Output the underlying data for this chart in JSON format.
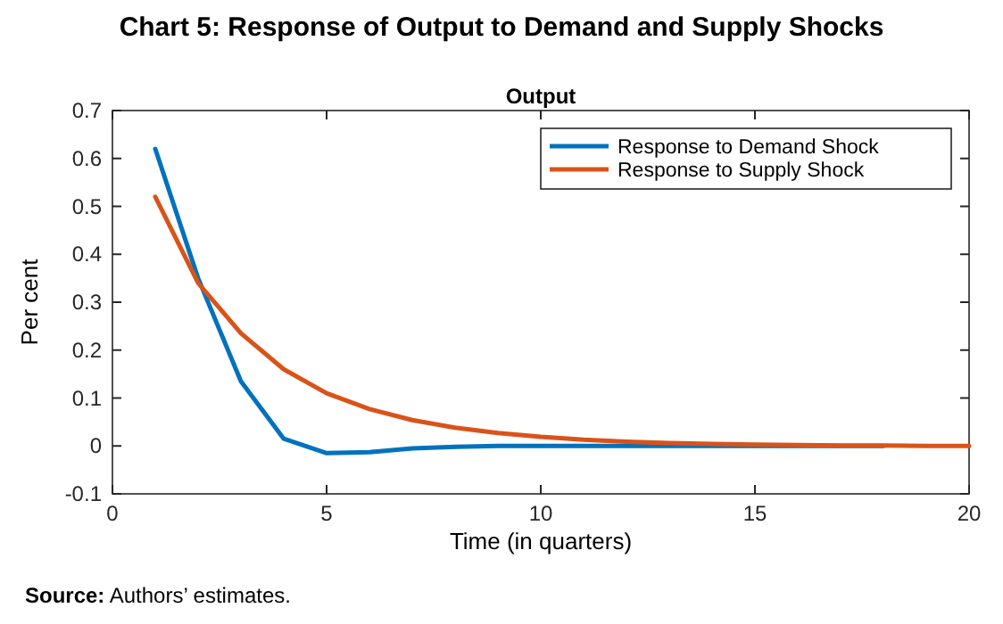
{
  "chart_data": {
    "type": "line",
    "title": "Chart 5: Response of Output to Demand and Supply Shocks",
    "subtitle": "Output",
    "xlabel": "Time (in quarters)",
    "ylabel": "Per cent",
    "annotations": [
      "Source: Authors’ estimates."
    ],
    "x": [
      1,
      2,
      3,
      4,
      5,
      6,
      7,
      8,
      9,
      10,
      11,
      12,
      13,
      14,
      15,
      16,
      17,
      18,
      19,
      20
    ],
    "series": [
      {
        "name": "Response to Demand Shock",
        "color": "#0072bd",
        "values": [
          0.62,
          0.35,
          0.135,
          0.015,
          -0.015,
          -0.013,
          -0.005,
          -0.002,
          0,
          0,
          0,
          0,
          0,
          0,
          0,
          0,
          0,
          0,
          null,
          null
        ]
      },
      {
        "name": "Response to Supply Shock",
        "color": "#d95319",
        "values": [
          0.52,
          0.34,
          0.235,
          0.16,
          0.11,
          0.077,
          0.054,
          0.038,
          0.027,
          0.019,
          0.013,
          0.009,
          0.006,
          0.004,
          0.003,
          0.002,
          0.001,
          0.001,
          0,
          0
        ]
      }
    ],
    "xlim": [
      0,
      20
    ],
    "xticks": [
      0,
      5,
      10,
      15,
      20
    ],
    "ylim": [
      -0.1,
      0.7
    ],
    "yticks": [
      -0.1,
      0,
      0.1,
      0.2,
      0.3,
      0.4,
      0.5,
      0.6,
      0.7
    ],
    "grid": false,
    "legend": "top right",
    "line_style": "solid",
    "marker": "none"
  }
}
